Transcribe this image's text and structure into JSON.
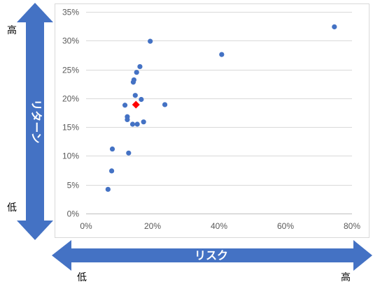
{
  "y_axis_arrow": {
    "label": "リターン",
    "high_label": "高",
    "low_label": "低"
  },
  "x_axis_arrow": {
    "label": "リスク",
    "high_label": "高",
    "low_label": "低"
  },
  "colors": {
    "arrow": "#4472c4",
    "point": "#4472c4",
    "highlight": "#ff0000",
    "grid": "#d9d9d9",
    "border": "#d9d9d9"
  },
  "chart_data": {
    "type": "scatter",
    "xlim": [
      0,
      0.8
    ],
    "ylim": [
      0,
      0.35
    ],
    "x_ticks": [
      0,
      0.2,
      0.4,
      0.6,
      0.8
    ],
    "y_ticks": [
      0,
      0.05,
      0.1,
      0.15,
      0.2,
      0.25,
      0.3,
      0.35
    ],
    "x_tick_labels": [
      "0%",
      "20%",
      "40%",
      "60%",
      "80%"
    ],
    "y_tick_labels": [
      "0%",
      "5%",
      "10%",
      "15%",
      "20%",
      "25%",
      "30%",
      "35%"
    ],
    "grid": "horizontal",
    "series": [
      {
        "marker": "circle",
        "points": [
          {
            "x": 0.066,
            "y": 0.042
          },
          {
            "x": 0.077,
            "y": 0.074
          },
          {
            "x": 0.079,
            "y": 0.112
          },
          {
            "x": 0.128,
            "y": 0.105
          },
          {
            "x": 0.124,
            "y": 0.163
          },
          {
            "x": 0.124,
            "y": 0.168
          },
          {
            "x": 0.117,
            "y": 0.188
          },
          {
            "x": 0.14,
            "y": 0.155
          },
          {
            "x": 0.154,
            "y": 0.155
          },
          {
            "x": 0.173,
            "y": 0.159
          },
          {
            "x": 0.148,
            "y": 0.205
          },
          {
            "x": 0.166,
            "y": 0.198
          },
          {
            "x": 0.142,
            "y": 0.228
          },
          {
            "x": 0.144,
            "y": 0.232
          },
          {
            "x": 0.152,
            "y": 0.245
          },
          {
            "x": 0.162,
            "y": 0.255
          },
          {
            "x": 0.193,
            "y": 0.299
          },
          {
            "x": 0.237,
            "y": 0.189
          },
          {
            "x": 0.408,
            "y": 0.276
          },
          {
            "x": 0.747,
            "y": 0.324
          }
        ]
      },
      {
        "marker": "diamond",
        "points": [
          {
            "x": 0.15,
            "y": 0.189
          }
        ]
      }
    ]
  }
}
